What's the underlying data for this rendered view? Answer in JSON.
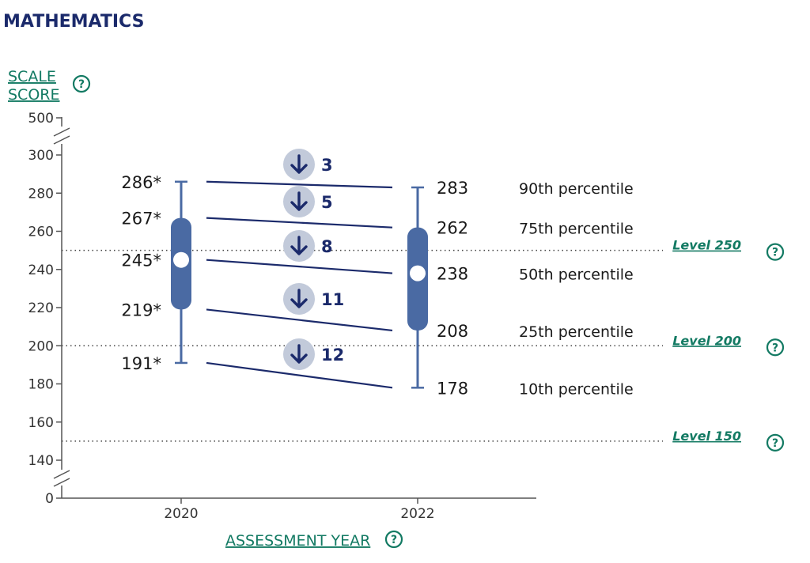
{
  "title": "MATHEMATICS",
  "help_icon": "question-circle-icon",
  "down_arrow_icon": "arrow-down-circle-icon",
  "colors": {
    "title": "#1b2a6b",
    "link": "#137a63",
    "box": "#4a6aa3",
    "connector": "#1b2a6b",
    "diff_circle": "#c2cada"
  },
  "chart_data": {
    "type": "box",
    "ylabel_lines": [
      "SCALE",
      "SCORE"
    ],
    "xlabel": "ASSESSMENT YEAR",
    "y_ticks": [
      0,
      140,
      160,
      180,
      200,
      220,
      240,
      260,
      280,
      300,
      500
    ],
    "y_axis_break": true,
    "categories": [
      "2020",
      "2022"
    ],
    "series": [
      {
        "year": "2020",
        "p10": 191,
        "p25": 219,
        "p50": 245,
        "p75": 267,
        "p90": 286,
        "labels": [
          "191*",
          "219*",
          "245*",
          "267*",
          "286*"
        ]
      },
      {
        "year": "2022",
        "p10": 178,
        "p25": 208,
        "p50": 238,
        "p75": 262,
        "p90": 283,
        "labels": [
          "178",
          "208",
          "238",
          "262",
          "283"
        ]
      }
    ],
    "percentile_labels": [
      "10th percentile",
      "25th percentile",
      "50th percentile",
      "75th percentile",
      "90th percentile"
    ],
    "differences": [
      {
        "percentile": "p10",
        "value": "12",
        "direction": "down"
      },
      {
        "percentile": "p25",
        "value": "11",
        "direction": "down"
      },
      {
        "percentile": "p50",
        "value": "8",
        "direction": "down"
      },
      {
        "percentile": "p75",
        "value": "5",
        "direction": "down"
      },
      {
        "percentile": "p90",
        "value": "3",
        "direction": "down"
      }
    ],
    "reference_levels": [
      {
        "label": "Level 250",
        "value": 250
      },
      {
        "label": "Level 200",
        "value": 200
      },
      {
        "label": "Level 150",
        "value": 150
      }
    ]
  }
}
